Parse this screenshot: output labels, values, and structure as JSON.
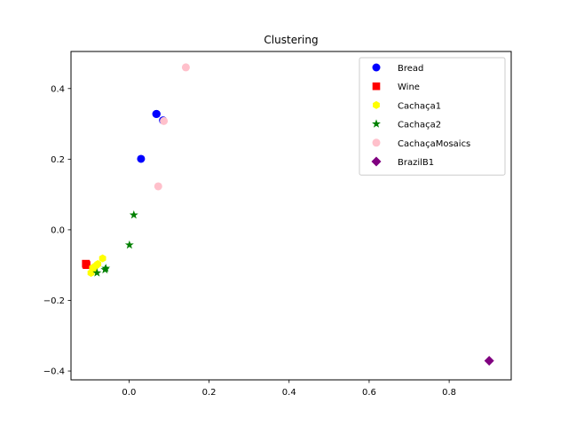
{
  "chart_data": {
    "type": "scatter",
    "title": "Clustering",
    "xlabel": "",
    "ylabel": "",
    "xlim": [
      -0.145,
      0.955
    ],
    "ylim": [
      -0.425,
      0.505
    ],
    "xticks": [
      0.0,
      0.2,
      0.4,
      0.6,
      0.8
    ],
    "xtick_labels": [
      "0.0",
      "0.2",
      "0.4",
      "0.6",
      "0.8"
    ],
    "yticks": [
      -0.4,
      -0.2,
      0.0,
      0.2,
      0.4
    ],
    "yticks_labels": [
      "−0.4",
      "−0.2",
      "0.0",
      "0.2",
      "0.4"
    ],
    "grid": false,
    "legend_position": "top-right",
    "series": [
      {
        "name": "Bread",
        "color": "#0000ff",
        "marker": "circle",
        "points": [
          [
            0.068,
            0.328
          ],
          [
            0.069,
            0.328
          ],
          [
            0.03,
            0.201
          ],
          [
            0.085,
            0.31
          ]
        ]
      },
      {
        "name": "Wine",
        "color": "#ff0000",
        "marker": "square",
        "points": [
          [
            -0.108,
            -0.096
          ],
          [
            -0.106,
            -0.1
          ],
          [
            -0.107,
            -0.098
          ]
        ]
      },
      {
        "name": "Cachaça1",
        "color": "#ffff00",
        "marker": "hexagon",
        "points": [
          [
            -0.066,
            -0.081
          ],
          [
            -0.083,
            -0.102
          ],
          [
            -0.095,
            -0.122
          ],
          [
            -0.088,
            -0.112
          ],
          [
            -0.078,
            -0.097
          ],
          [
            -0.091,
            -0.108
          ]
        ]
      },
      {
        "name": "Cachaça2",
        "color": "#008000",
        "marker": "star",
        "points": [
          [
            0.012,
            0.042
          ],
          [
            0.001,
            -0.043
          ],
          [
            -0.058,
            -0.109
          ],
          [
            -0.06,
            -0.113
          ],
          [
            -0.08,
            -0.122
          ]
        ]
      },
      {
        "name": "CachaçaMosaics",
        "color": "#ffc0cb",
        "marker": "circle",
        "points": [
          [
            0.142,
            0.46
          ],
          [
            0.087,
            0.308
          ],
          [
            0.073,
            0.123
          ]
        ]
      },
      {
        "name": "BrazilB1",
        "color": "#800080",
        "marker": "diamond",
        "points": [
          [
            0.9,
            -0.371
          ]
        ]
      }
    ]
  }
}
